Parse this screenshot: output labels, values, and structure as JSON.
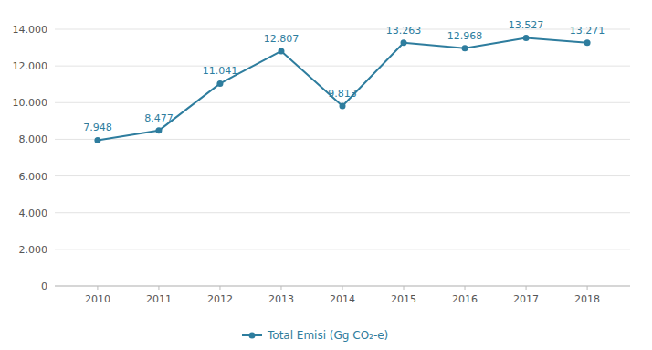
{
  "chart_data": {
    "type": "line",
    "x": [
      2010,
      2011,
      2012,
      2013,
      2014,
      2015,
      2016,
      2017,
      2018
    ],
    "xlim": [
      2009.3,
      2018.7
    ],
    "xticks": [
      2010,
      2011,
      2012,
      2013,
      2014,
      2015,
      2016,
      2017,
      2018
    ],
    "ylim": [
      0,
      14000
    ],
    "yticks": [
      0,
      {
        "value": 2000,
        "label": "2.000"
      },
      {
        "value": 4000,
        "label": "4.000"
      },
      {
        "value": 6000,
        "label": "6.000"
      },
      {
        "value": 8000,
        "label": "8.000"
      },
      {
        "value": 10000,
        "label": "10.000"
      },
      {
        "value": 12000,
        "label": "12.000"
      },
      {
        "value": 14000,
        "label": "14.000"
      }
    ],
    "series": [
      {
        "name": "Total Emisi (Gg CO₂-e)",
        "color": "#2E7D9E",
        "marker": "circle",
        "values": [
          7948,
          8477,
          11041,
          12807,
          9813,
          13263,
          12968,
          13527,
          13271
        ],
        "value_labels": [
          "7.948",
          "8.477",
          "11.041",
          "12.807",
          "9.813",
          "13.263",
          "12.968",
          "13.527",
          "13.271"
        ]
      }
    ],
    "grid": true,
    "legend": "bottom",
    "data_labels": true
  }
}
